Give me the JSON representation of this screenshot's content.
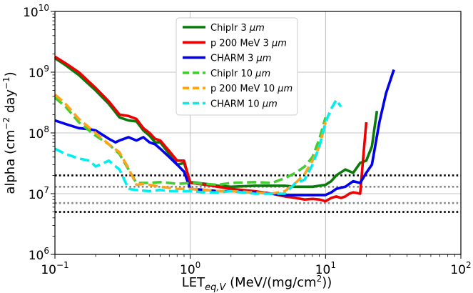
{
  "chart_data": {
    "type": "line",
    "x_scale": "log",
    "y_scale": "log",
    "xlim": [
      0.1,
      100
    ],
    "ylim": [
      1000000,
      10000000000
    ],
    "grid": true,
    "legend_position": "top-center",
    "xlabel": {
      "main": "LET",
      "sub": "eq,V",
      "rest": " (MeV/(mg/cm",
      "sup": "2",
      "end": "))"
    },
    "ylabel": {
      "main": "alpha (cm",
      "sup1": "−2",
      "mid": " day",
      "sup2": "−1",
      "end": ")"
    },
    "x_ticks": [
      {
        "base": "10",
        "exp": "−1"
      },
      {
        "base": "10",
        "exp": "0"
      },
      {
        "base": "10",
        "exp": "1"
      },
      {
        "base": "10",
        "exp": "2"
      }
    ],
    "y_ticks": [
      {
        "base": "10",
        "exp": "6"
      },
      {
        "base": "10",
        "exp": "7"
      },
      {
        "base": "10",
        "exp": "8"
      },
      {
        "base": "10",
        "exp": "9"
      },
      {
        "base": "10",
        "exp": "10"
      }
    ],
    "series": [
      {
        "name": "ChipIr 3 μm",
        "legend_prefix": "ChipIr 3 ",
        "legend_unit": "μm",
        "color": "#0a7a0a",
        "dash": false,
        "x": [
          0.1,
          0.12,
          0.15,
          0.2,
          0.25,
          0.3,
          0.35,
          0.4,
          0.45,
          0.5,
          0.55,
          0.6,
          0.7,
          0.8,
          0.9,
          1.0,
          1.3,
          1.6,
          2,
          3,
          4,
          5,
          6,
          8,
          10,
          11,
          12,
          14,
          16,
          18,
          20,
          22,
          23,
          24
        ],
        "y": [
          1700000000.0,
          1300000000.0,
          900000000.0,
          500000000.0,
          300000000.0,
          180000000.0,
          160000000.0,
          155000000.0,
          110000000.0,
          90000000.0,
          70000000.0,
          70000000.0,
          45000000.0,
          30000000.0,
          32000000.0,
          15500000.0,
          14500000.0,
          13500000.0,
          13000000.0,
          13500000.0,
          13500000.0,
          13500000.0,
          13000000.0,
          13000000.0,
          14000000.0,
          16000000.0,
          20000000.0,
          25000000.0,
          22000000.0,
          32000000.0,
          35000000.0,
          60000000.0,
          120000000.0,
          230000000.0
        ]
      },
      {
        "name": "p 200 MeV 3 μm",
        "legend_prefix": "p 200 MeV 3 ",
        "legend_unit": "μm",
        "color": "#ee0000",
        "dash": false,
        "x": [
          0.1,
          0.12,
          0.15,
          0.2,
          0.25,
          0.3,
          0.35,
          0.4,
          0.45,
          0.5,
          0.55,
          0.6,
          0.7,
          0.8,
          0.9,
          1.0,
          1.3,
          1.6,
          2,
          3,
          4,
          5,
          6,
          7,
          8,
          9,
          10,
          11,
          12,
          13,
          14,
          15,
          16,
          18,
          20
        ],
        "y": [
          1800000000.0,
          1400000000.0,
          1000000000.0,
          550000000.0,
          330000000.0,
          200000000.0,
          190000000.0,
          170000000.0,
          120000000.0,
          100000000.0,
          80000000.0,
          75000000.0,
          50000000.0,
          35000000.0,
          35000000.0,
          15000000.0,
          14000000.0,
          13000000.0,
          12000000.0,
          11000000.0,
          10000000.0,
          9000000.0,
          8500000.0,
          8000000.0,
          8200000.0,
          8000000.0,
          7500000.0,
          8500000.0,
          9000000.0,
          8500000.0,
          9000000.0,
          10000000.0,
          10500000.0,
          10000000.0,
          150000000.0
        ]
      },
      {
        "name": "CHARM 3 μm",
        "legend_prefix": "CHARM 3 ",
        "legend_unit": "μm",
        "color": "#0000ee",
        "dash": false,
        "x": [
          0.1,
          0.12,
          0.15,
          0.18,
          0.2,
          0.25,
          0.28,
          0.3,
          0.35,
          0.4,
          0.45,
          0.5,
          0.55,
          0.6,
          0.7,
          0.8,
          0.9,
          1.0,
          1.3,
          1.6,
          2,
          3,
          4,
          5,
          6,
          8,
          10,
          11,
          12,
          14,
          16,
          18,
          20,
          22,
          25,
          28,
          32
        ],
        "y": [
          160000000.0,
          140000000.0,
          120000000.0,
          115000000.0,
          110000000.0,
          80000000.0,
          70000000.0,
          75000000.0,
          85000000.0,
          75000000.0,
          85000000.0,
          70000000.0,
          65000000.0,
          55000000.0,
          40000000.0,
          30000000.0,
          23000000.0,
          12000000.0,
          11500000.0,
          11000000.0,
          11000000.0,
          10500000.0,
          10000000.0,
          9500000.0,
          9500000.0,
          9500000.0,
          9500000.0,
          10500000.0,
          12000000.0,
          13000000.0,
          16000000.0,
          15000000.0,
          22000000.0,
          30000000.0,
          150000000.0,
          450000000.0,
          1100000000.0
        ]
      },
      {
        "name": "ChipIr 10 μm",
        "legend_prefix": "ChipIr 10 ",
        "legend_unit": "μm",
        "color": "#44cc33",
        "dash": true,
        "x": [
          0.1,
          0.12,
          0.15,
          0.2,
          0.25,
          0.3,
          0.35,
          0.4,
          0.45,
          0.5,
          0.6,
          0.7,
          0.8,
          1.0,
          1.3,
          1.6,
          2,
          3,
          4,
          5,
          6,
          7,
          8,
          9,
          10
        ],
        "y": [
          380000000.0,
          270000000.0,
          150000000.0,
          90000000.0,
          65000000.0,
          45000000.0,
          25000000.0,
          15000000.0,
          15000000.0,
          15000000.0,
          15500000.0,
          15000000.0,
          14500000.0,
          15000000.0,
          14500000.0,
          14000000.0,
          15000000.0,
          15500000.0,
          15000000.0,
          18000000.0,
          22000000.0,
          28000000.0,
          40000000.0,
          80000000.0,
          180000000.0
        ]
      },
      {
        "name": "p 200 MeV 10 μm",
        "legend_prefix": "p 200 MeV 10 ",
        "legend_unit": "μm",
        "color": "#ffa31a",
        "dash": true,
        "x": [
          0.1,
          0.12,
          0.15,
          0.2,
          0.25,
          0.3,
          0.35,
          0.4,
          0.45,
          0.5,
          0.6,
          0.7,
          0.8,
          1.0,
          1.3,
          1.6,
          2,
          3,
          4,
          5,
          6,
          7,
          8,
          9,
          10
        ],
        "y": [
          430000000.0,
          300000000.0,
          170000000.0,
          100000000.0,
          65000000.0,
          48000000.0,
          26000000.0,
          14000000.0,
          14500000.0,
          14000000.0,
          13000000.0,
          12500000.0,
          12000000.0,
          12000000.0,
          11500000.0,
          11000000.0,
          11000000.0,
          10500000.0,
          10000000.0,
          11000000.0,
          15000000.0,
          21000000.0,
          35000000.0,
          60000000.0,
          150000000.0
        ]
      },
      {
        "name": "CHARM 10 μm",
        "legend_prefix": "CHARM 10 ",
        "legend_unit": "μm",
        "color": "#00eeee",
        "dash": true,
        "x": [
          0.1,
          0.12,
          0.15,
          0.18,
          0.2,
          0.25,
          0.3,
          0.35,
          0.4,
          0.5,
          0.6,
          0.7,
          0.8,
          1.0,
          1.3,
          1.6,
          2,
          3,
          4,
          5,
          6,
          7,
          8,
          9,
          10,
          11,
          12,
          13
        ],
        "y": [
          55000000.0,
          45000000.0,
          38000000.0,
          35000000.0,
          28000000.0,
          35000000.0,
          25000000.0,
          12000000.0,
          11500000.0,
          11000000.0,
          11500000.0,
          11000000.0,
          11000000.0,
          11000000.0,
          10500000.0,
          10500000.0,
          11000000.0,
          10000000.0,
          10000000.0,
          10000000.0,
          15000000.0,
          17000000.0,
          30000000.0,
          60000000.0,
          150000000.0,
          250000000.0,
          350000000.0,
          270000000.0
        ]
      }
    ],
    "reference_lines": [
      {
        "y": 20000000,
        "color": "#000000"
      },
      {
        "y": 13000000,
        "color": "#888888"
      },
      {
        "y": 7000000,
        "color": "#888888"
      },
      {
        "y": 5000000,
        "color": "#000000"
      }
    ]
  }
}
